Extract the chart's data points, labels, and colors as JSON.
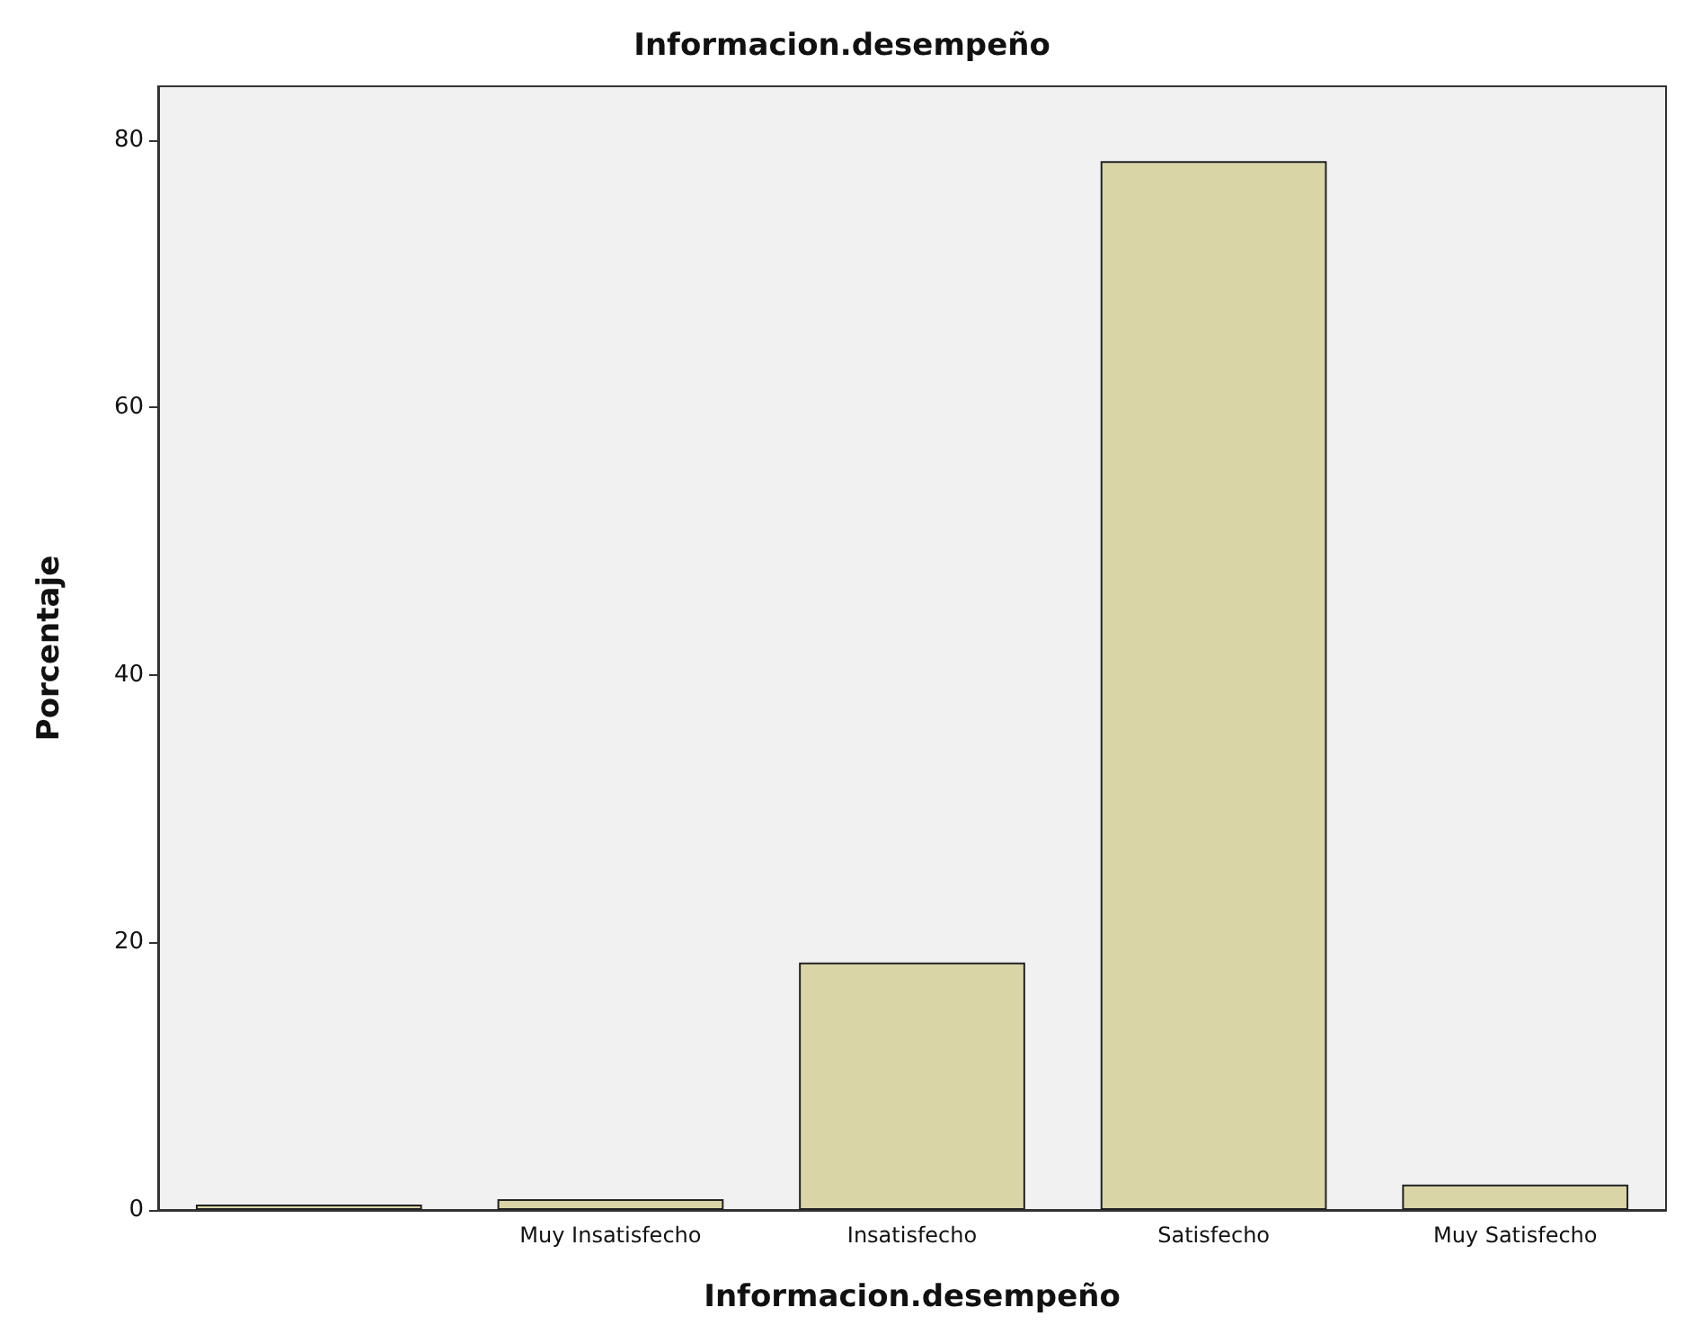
{
  "chart_data": {
    "type": "bar",
    "title": "Informacion.desempeño",
    "xlabel": "Informacion.desempeño",
    "ylabel": "Porcentaje",
    "categories": [
      null,
      "Muy Insatisfecho",
      "Insatisfecho",
      "Satisfecho",
      "Muy Satisfecho"
    ],
    "values": [
      0.4,
      0.8,
      18.5,
      78.4,
      1.9
    ],
    "color": "#d9d5a7",
    "ylim": [
      0,
      84
    ],
    "yticks": [
      0,
      20,
      40,
      60,
      80
    ],
    "grid": false
  }
}
